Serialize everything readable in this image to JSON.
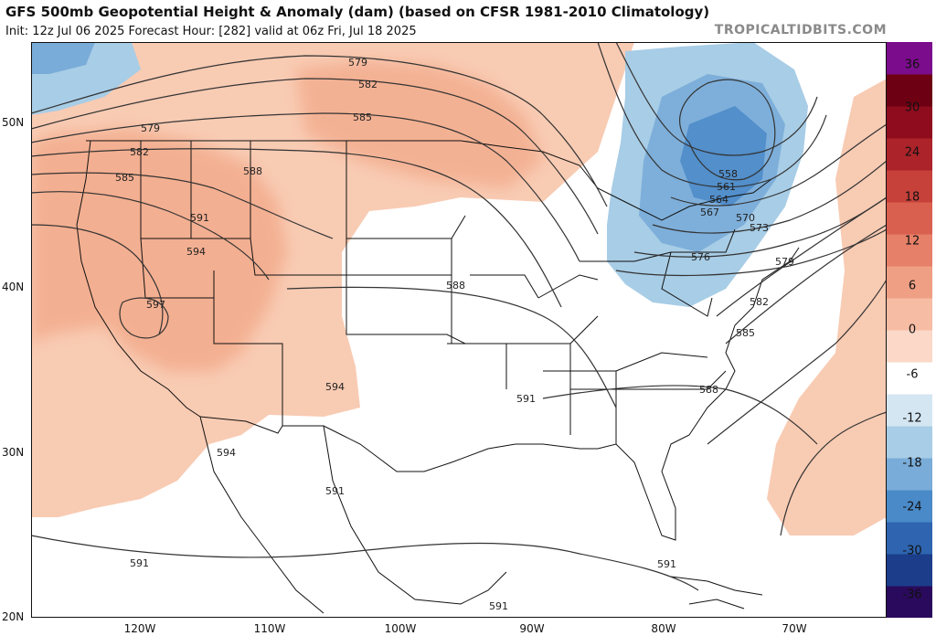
{
  "header": {
    "title": "GFS 500mb Geopotential Height & Anomaly (dam) (based on CFSR 1981-2010 Climatology)",
    "subtitle": "Init: 12z Jul 06 2025   Forecast Hour: [282]   valid at 06z Fri, Jul 18 2025",
    "brand": "TROPICALTIDBITS.COM"
  },
  "map": {
    "latitude_labels": [
      "50N",
      "40N",
      "30N",
      "20N"
    ],
    "longitude_labels": [
      "120W",
      "110W",
      "100W",
      "90W",
      "80W",
      "70W"
    ],
    "contour_labels": {
      "c579a": "579",
      "c582a": "582",
      "c585a": "585",
      "c579b": "579",
      "c582b": "582",
      "c585b": "585",
      "c588a": "588",
      "c591a": "591",
      "c594a": "594",
      "c597": "597",
      "c588b": "588",
      "c594b": "594",
      "c591b": "591",
      "c594c": "594",
      "c591c": "591",
      "c591d": "591",
      "c591e": "591",
      "c591f": "591",
      "c558": "558",
      "c561": "561",
      "c564": "564",
      "c567": "567",
      "c570": "570",
      "c573": "573",
      "c576": "576",
      "c579c": "579",
      "c582c": "582",
      "c585c": "585",
      "c588c": "588"
    }
  },
  "colorbar": {
    "labels": [
      "36",
      "30",
      "24",
      "18",
      "12",
      "6",
      "0",
      "-6",
      "-12",
      "-18",
      "-24",
      "-30",
      "-36"
    ],
    "colors": [
      "#2a0a5c",
      "#1c3d8a",
      "#2e64b0",
      "#4a8ac8",
      "#79acd8",
      "#a8cde6",
      "#d4e6f2",
      "#ffffff",
      "#fbd8c8",
      "#f7bca4",
      "#ef9f84",
      "#e68068",
      "#d9604e",
      "#c6413a",
      "#ac232a",
      "#8e0c1e",
      "#6d0012",
      "#7b0c8c"
    ]
  }
}
